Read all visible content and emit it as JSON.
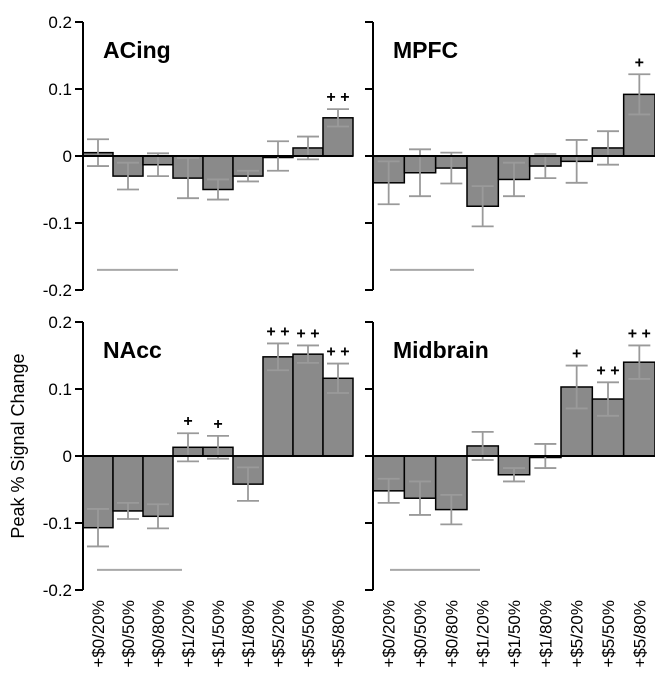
{
  "colors": {
    "bar_fill": "#8a8a8a",
    "bar_stroke": "#000000",
    "error_bar": "#9a9a9a",
    "axis": "#000000",
    "gray_line": "#a8a8a8"
  },
  "ylabel": "Peak % Signal Change",
  "chart_data": [
    {
      "type": "bar",
      "title": "ACing",
      "categories": [
        "+$0/20%",
        "+$0/50%",
        "+$0/80%",
        "+$1/20%",
        "+$1/50%",
        "+$1/80%",
        "+$5/20%",
        "+$5/50%",
        "+$5/80%"
      ],
      "values": [
        0.005,
        -0.03,
        -0.013,
        -0.033,
        -0.05,
        -0.03,
        0.0,
        0.012,
        0.057
      ],
      "errors": [
        0.02,
        0.02,
        0.017,
        0.03,
        0.015,
        0.008,
        0.022,
        0.017,
        0.013
      ],
      "significance": [
        "",
        "",
        "",
        "",
        "",
        "",
        "",
        "",
        "++"
      ],
      "ylim": [
        -0.2,
        0.2
      ],
      "yticks": [
        "0.2",
        "0.1",
        "0",
        "-0.1",
        "-0.2"
      ]
    },
    {
      "type": "bar",
      "title": "MPFC",
      "categories": [
        "+$0/20%",
        "+$0/50%",
        "+$0/80%",
        "+$1/20%",
        "+$1/50%",
        "+$1/80%",
        "+$5/20%",
        "+$5/50%",
        "+$5/80%"
      ],
      "values": [
        -0.04,
        -0.025,
        -0.018,
        -0.075,
        -0.035,
        -0.015,
        -0.008,
        0.012,
        0.092
      ],
      "errors": [
        0.032,
        0.035,
        0.023,
        0.03,
        0.025,
        0.018,
        0.032,
        0.025,
        0.03
      ],
      "significance": [
        "",
        "",
        "",
        "",
        "",
        "",
        "",
        "",
        "+"
      ],
      "ylim": [
        -0.2,
        0.2
      ],
      "yticks": []
    },
    {
      "type": "bar",
      "title": "NAcc",
      "categories": [
        "+$0/20%",
        "+$0/50%",
        "+$0/80%",
        "+$1/20%",
        "+$1/50%",
        "+$1/80%",
        "+$5/20%",
        "+$5/50%",
        "+$5/80%"
      ],
      "values": [
        -0.107,
        -0.082,
        -0.09,
        0.013,
        0.013,
        -0.042,
        0.148,
        0.152,
        0.116
      ],
      "errors": [
        0.028,
        0.012,
        0.018,
        0.021,
        0.017,
        0.025,
        0.02,
        0.013,
        0.022
      ],
      "significance": [
        "",
        "",
        "",
        "+",
        "+",
        "",
        "++",
        "++",
        "++"
      ],
      "ylim": [
        -0.2,
        0.2
      ],
      "yticks": [
        "0.2",
        "0.1",
        "0",
        "-0.1",
        "-0.2"
      ]
    },
    {
      "type": "bar",
      "title": "Midbrain",
      "categories": [
        "+$0/20%",
        "+$0/50%",
        "+$0/80%",
        "+$1/20%",
        "+$1/50%",
        "+$1/80%",
        "+$5/20%",
        "+$5/50%",
        "+$5/80%"
      ],
      "values": [
        -0.052,
        -0.063,
        -0.08,
        0.015,
        -0.028,
        0.0,
        0.103,
        0.085,
        0.14
      ],
      "errors": [
        0.018,
        0.025,
        0.022,
        0.021,
        0.01,
        0.018,
        0.032,
        0.025,
        0.025
      ],
      "significance": [
        "",
        "",
        "",
        "",
        "",
        "",
        "+",
        "++",
        "++"
      ],
      "ylim": [
        -0.2,
        0.2
      ],
      "yticks": []
    }
  ]
}
